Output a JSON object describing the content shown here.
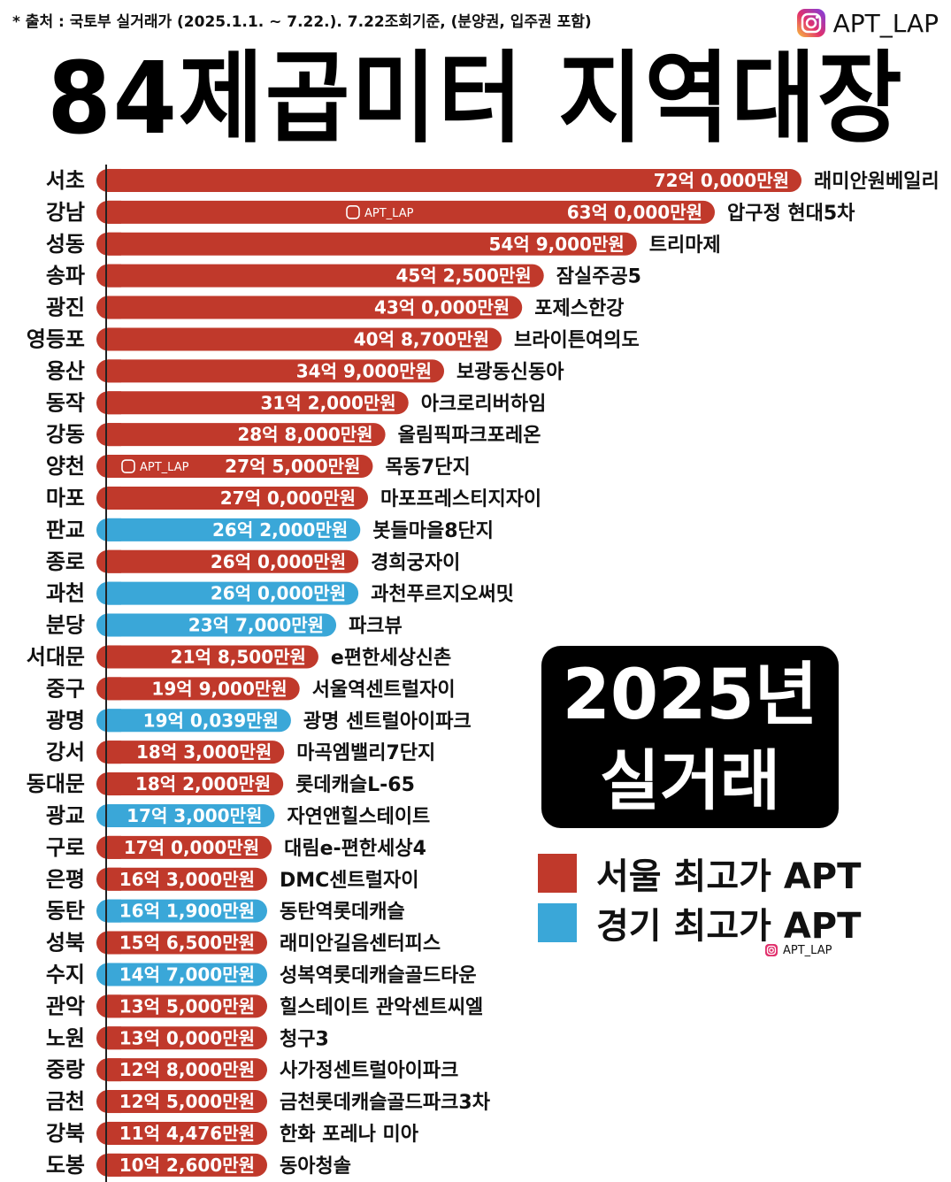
{
  "header": {
    "source_note": "* 출처 : 국토부 실거래가 (2025.1.1. ~ 7.22.). 7.22조회기준, (분양권, 입주권 포함)",
    "brand": "APT_LAP",
    "title": "84제곱미터 지역대장"
  },
  "badge": {
    "line1": "2025년",
    "line2": "실거래"
  },
  "colors": {
    "seoul": "#c0392b",
    "gyeonggi": "#3aa7d8",
    "axis": "#222222"
  },
  "legend": [
    {
      "label": "서울 최고가 APT",
      "color": "#c0392b"
    },
    {
      "label": "경기 최고가 APT",
      "color": "#3aa7d8"
    }
  ],
  "watermark": "APT_LAP",
  "chart_data": {
    "type": "bar",
    "orientation": "horizontal",
    "title": "84제곱미터 지역대장",
    "xlabel": "",
    "ylabel": "",
    "unit": "만원",
    "xlim": [
      0,
      720000
    ],
    "categories": [
      "서초",
      "강남",
      "성동",
      "송파",
      "광진",
      "영등포",
      "용산",
      "동작",
      "강동",
      "양천",
      "마포",
      "판교",
      "종로",
      "과천",
      "분당",
      "서대문",
      "중구",
      "광명",
      "강서",
      "동대문",
      "광교",
      "구로",
      "은평",
      "동탄",
      "성북",
      "수지",
      "관악",
      "노원",
      "중랑",
      "금천",
      "강북",
      "도봉"
    ],
    "values": [
      720000,
      630000,
      549000,
      452500,
      430000,
      408700,
      349000,
      312000,
      288000,
      275000,
      270000,
      262000,
      260000,
      260000,
      237000,
      218500,
      199000,
      190039,
      183000,
      182000,
      173000,
      170000,
      163000,
      161900,
      156500,
      147000,
      135000,
      130000,
      128000,
      125000,
      114476,
      102600
    ],
    "value_labels": [
      "72억 0,000만원",
      "63억 0,000만원",
      "54억 9,000만원",
      "45억 2,500만원",
      "43억 0,000만원",
      "40억 8,700만원",
      "34억 9,000만원",
      "31억 2,000만원",
      "28억 8,000만원",
      "27억 5,000만원",
      "27억 0,000만원",
      "26억 2,000만원",
      "26억 0,000만원",
      "26억 0,000만원",
      "23억 7,000만원",
      "21억 8,500만원",
      "19억 9,000만원",
      "19억 0,039만원",
      "18억 3,000만원",
      "18억 2,000만원",
      "17억 3,000만원",
      "17억 0,000만원",
      "16억 3,000만원",
      "16억 1,900만원",
      "15억 6,500만원",
      "14억 7,000만원",
      "13억 5,000만원",
      "13억 0,000만원",
      "12억 8,000만원",
      "12억 5,000만원",
      "11억 4,476만원",
      "10억 2,600만원"
    ],
    "apartments": [
      "래미안원베일리",
      "압구정 현대5차",
      "트리마제",
      "잠실주공5",
      "포제스한강",
      "브라이튼여의도",
      "보광동신동아",
      "아크로리버하임",
      "올림픽파크포레온",
      "목동7단지",
      "마포프레스티지자이",
      "봇들마을8단지",
      "경희궁자이",
      "과천푸르지오써밋",
      "파크뷰",
      "e편한세상신촌",
      "서울역센트럴자이",
      "광명 센트럴아이파크",
      "마곡엠밸리7단지",
      "롯데캐슬L-65",
      "자연앤힐스테이트",
      "대림e-편한세상4",
      "DMC센트럴자이",
      "동탄역롯데캐슬",
      "래미안길음센터피스",
      "성복역롯데캐슬골드타운",
      "힐스테이트 관악센트씨엘",
      "청구3",
      "사가정센트럴아이파크",
      "금천롯데캐슬골드파크3차",
      "한화 포레나 미아",
      "동아청솔"
    ],
    "groups": [
      "서울",
      "서울",
      "서울",
      "서울",
      "서울",
      "서울",
      "서울",
      "서울",
      "서울",
      "서울",
      "서울",
      "경기",
      "서울",
      "경기",
      "경기",
      "서울",
      "서울",
      "경기",
      "서울",
      "서울",
      "경기",
      "서울",
      "서울",
      "경기",
      "서울",
      "경기",
      "서울",
      "서울",
      "서울",
      "서울",
      "서울",
      "서울"
    ]
  }
}
